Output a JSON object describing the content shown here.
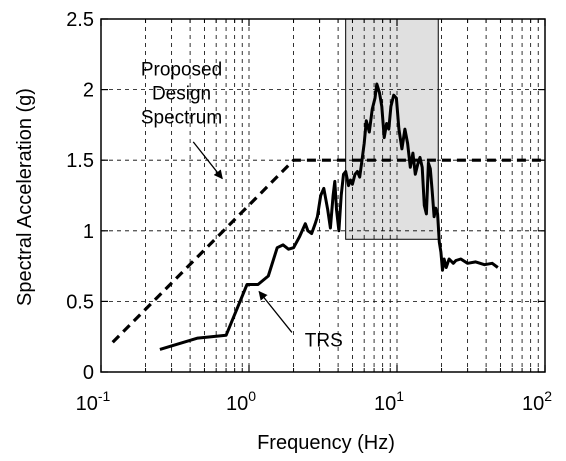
{
  "chart_data": {
    "type": "line",
    "title": "",
    "xlabel": "Frequency (Hz)",
    "ylabel": "Spectral Acceleration (g)",
    "xscale": "log",
    "xlim": [
      0.1,
      100
    ],
    "ylim": [
      0,
      2.5
    ],
    "x_ticks": [
      {
        "value": 0.1,
        "base": "10",
        "exp": "-1"
      },
      {
        "value": 1,
        "base": "10",
        "exp": "0"
      },
      {
        "value": 10,
        "base": "10",
        "exp": "1"
      },
      {
        "value": 100,
        "base": "10",
        "exp": "2"
      }
    ],
    "y_ticks": [
      {
        "value": 0,
        "label": "0"
      },
      {
        "value": 0.5,
        "label": "0.5"
      },
      {
        "value": 1,
        "label": "1"
      },
      {
        "value": 1.5,
        "label": "1.5"
      },
      {
        "value": 2,
        "label": "2"
      },
      {
        "value": 2.5,
        "label": "2.5"
      }
    ],
    "grid": true,
    "shaded_region": {
      "x": [
        4.5,
        19
      ],
      "y": [
        0.94,
        2.5
      ],
      "color": "#e0e0e0"
    },
    "series": [
      {
        "name": "Proposed Design Spectrum",
        "style": "dashed",
        "color": "#000000",
        "x": [
          0.12,
          2,
          100
        ],
        "y": [
          0.21,
          1.5,
          1.5
        ]
      },
      {
        "name": "TRS",
        "style": "solid",
        "color": "#000000",
        "x": [
          0.25,
          0.45,
          0.7,
          0.97,
          1.15,
          1.35,
          1.55,
          1.7,
          1.85,
          2.0,
          2.2,
          2.4,
          2.5,
          2.65,
          2.8,
          2.9,
          3.05,
          3.2,
          3.4,
          3.55,
          3.7,
          3.8,
          3.9,
          4.05,
          4.2,
          4.35,
          4.5,
          4.7,
          4.85,
          5.0,
          5.2,
          5.4,
          5.6,
          5.8,
          6.0,
          6.2,
          6.5,
          6.8,
          7.1,
          7.3,
          7.6,
          7.9,
          8.2,
          8.5,
          8.8,
          9.1,
          9.5,
          9.9,
          10.3,
          10.8,
          11.3,
          11.8,
          12.3,
          12.8,
          13.3,
          13.8,
          14.3,
          14.8,
          15.3,
          15.8,
          16.3,
          16.8,
          17.3,
          17.8,
          18.3,
          18.8,
          19.3,
          19.8,
          20.3,
          20.8,
          21.5,
          22.5,
          24,
          25,
          27,
          30,
          34,
          39,
          44,
          48
        ],
        "y": [
          0.16,
          0.24,
          0.26,
          0.62,
          0.62,
          0.68,
          0.88,
          0.9,
          0.87,
          0.88,
          0.96,
          1.05,
          1.0,
          0.98,
          1.05,
          1.1,
          1.25,
          1.3,
          1.15,
          1.02,
          1.25,
          1.35,
          1.15,
          1.0,
          1.25,
          1.4,
          1.42,
          1.32,
          1.36,
          1.33,
          1.4,
          1.42,
          1.38,
          1.5,
          1.62,
          1.78,
          1.7,
          1.86,
          1.94,
          2.04,
          1.98,
          1.88,
          1.66,
          1.76,
          1.72,
          1.88,
          1.96,
          1.94,
          1.72,
          1.58,
          1.72,
          1.62,
          1.45,
          1.55,
          1.4,
          1.47,
          1.52,
          1.45,
          1.18,
          1.12,
          1.48,
          1.44,
          1.28,
          1.1,
          1.16,
          1.12,
          0.92,
          0.85,
          0.72,
          0.8,
          0.74,
          0.8,
          0.77,
          0.79,
          0.8,
          0.77,
          0.78,
          0.76,
          0.77,
          0.74
        ]
      }
    ],
    "annotations": [
      {
        "lines": [
          "Proposed",
          "Design",
          "Spectrum"
        ],
        "text_at": {
          "x": 0.35,
          "y": 2.1
        },
        "arrow_from": {
          "x": 0.42,
          "y": 1.63
        },
        "arrow_to": {
          "x": 0.66,
          "y": 1.37
        }
      },
      {
        "lines": [
          "TRS"
        ],
        "text_at": {
          "x": 3.2,
          "y": 0.18
        },
        "arrow_from": {
          "x": 1.95,
          "y": 0.28
        },
        "arrow_to": {
          "x": 1.17,
          "y": 0.57
        }
      }
    ]
  }
}
